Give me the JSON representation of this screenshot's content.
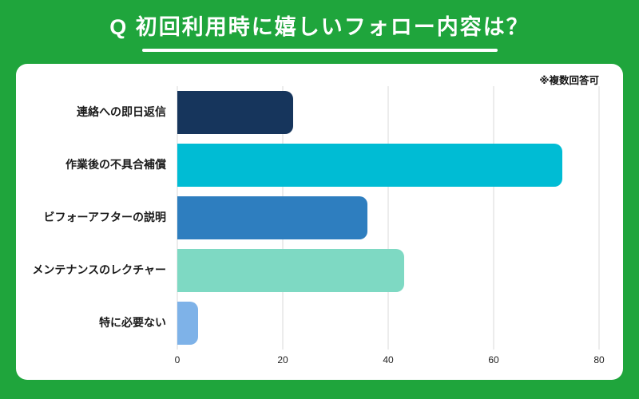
{
  "page": {
    "background_color": "#1FA53C",
    "card_color": "#FFFFFF"
  },
  "header": {
    "title": "Q 初回利用時に嬉しいフォロー内容は？"
  },
  "card": {
    "note": "※複数回答可"
  },
  "chart_data": {
    "type": "bar",
    "orientation": "horizontal",
    "title": "Q 初回利用時に嬉しいフォロー内容は？",
    "note": "※複数回答可",
    "categories": [
      "連絡への即日返信",
      "作業後の不具合補償",
      "ビフォーアフターの説明",
      "メンテナンスのレクチャー",
      "特に必要ない"
    ],
    "values": [
      22,
      73,
      36,
      43,
      4
    ],
    "bar_colors": [
      "#16355C",
      "#00BCD4",
      "#2E7EBF",
      "#7ED9C3",
      "#7EB2E8"
    ],
    "xlim": [
      0,
      80
    ],
    "xticks": [
      0,
      20,
      40,
      60,
      80
    ],
    "grid": "vertical",
    "legend": "none"
  }
}
